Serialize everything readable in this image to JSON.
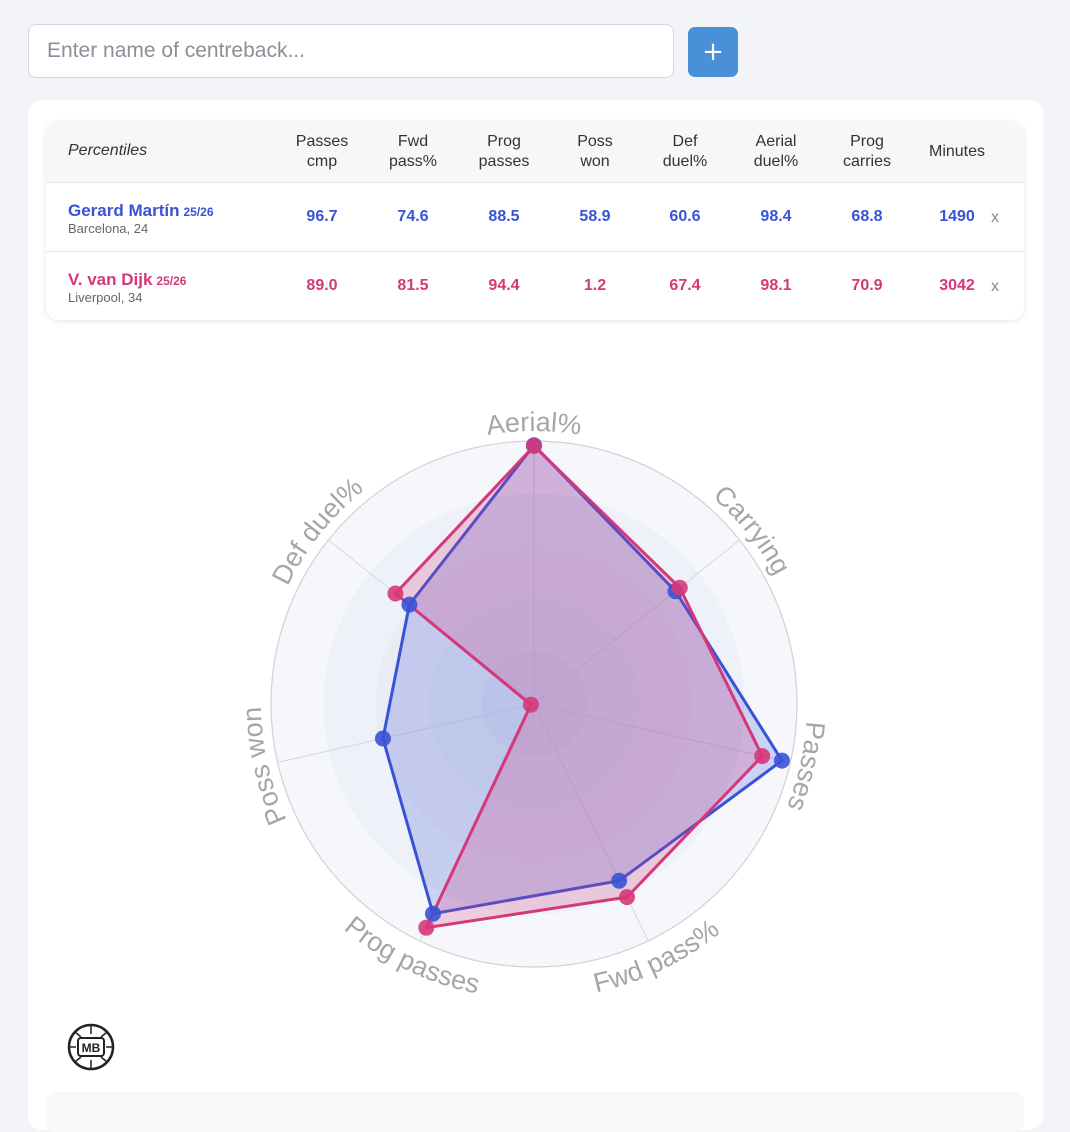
{
  "search": {
    "placeholder": "Enter name of centreback...",
    "add_label": "+"
  },
  "table": {
    "first_header": "Percentiles",
    "headers": [
      [
        "Passes",
        "cmp"
      ],
      [
        "Fwd",
        "pass%"
      ],
      [
        "Prog",
        "passes"
      ],
      [
        "Poss",
        "won"
      ],
      [
        "Def",
        "duel%"
      ],
      [
        "Aerial",
        "duel%"
      ],
      [
        "Prog",
        "carries"
      ],
      [
        "Minutes",
        ""
      ]
    ],
    "rows": [
      {
        "name": "Gerard Martín",
        "season": "25/26",
        "sub": "Barcelona, 24",
        "values": [
          "96.7",
          "74.6",
          "88.5",
          "58.9",
          "60.6",
          "98.4",
          "68.8",
          "1490"
        ],
        "remove": "x"
      },
      {
        "name": "V. van Dijk",
        "season": "25/26",
        "sub": "Liverpool, 34",
        "values": [
          "89.0",
          "81.5",
          "94.4",
          "1.2",
          "67.4",
          "98.1",
          "70.9",
          "3042"
        ],
        "remove": "x"
      }
    ]
  },
  "chart_data": {
    "type": "radar",
    "axes": [
      "Aerial%",
      "Carrying",
      "Passes",
      "Fwd pass%",
      "Prog passes",
      "Poss won",
      "Def duel%"
    ],
    "range": [
      0,
      100
    ],
    "series": [
      {
        "name": "Gerard Martín",
        "color": "#3a52d6",
        "values": [
          98.4,
          68.8,
          96.7,
          74.6,
          88.5,
          58.9,
          60.6
        ]
      },
      {
        "name": "V. van Dijk",
        "color": "#d63779",
        "values": [
          98.1,
          70.9,
          89.0,
          81.5,
          94.4,
          1.2,
          67.4
        ]
      }
    ]
  },
  "logo": {
    "text": "MB"
  },
  "colors": {
    "accent": "#4a90d9",
    "player1": "#3a52d6",
    "player2": "#d63779"
  }
}
